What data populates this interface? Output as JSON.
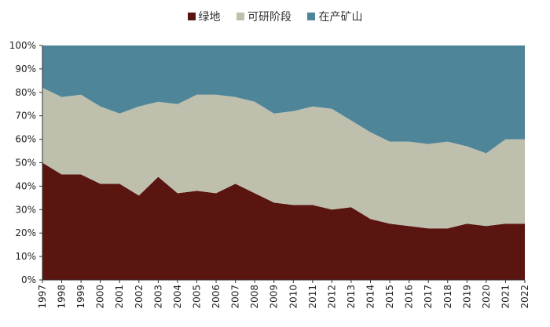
{
  "chart_data": {
    "type": "area",
    "stacked": true,
    "legend_position": "top",
    "grid": false,
    "ylim": [
      0,
      100
    ],
    "y_ticks": [
      "0%",
      "10%",
      "20%",
      "30%",
      "40%",
      "50%",
      "60%",
      "70%",
      "80%",
      "90%",
      "100%"
    ],
    "categories": [
      "1997",
      "1998",
      "1999",
      "2000",
      "2001",
      "2002",
      "2003",
      "2004",
      "2005",
      "2006",
      "2007",
      "2008",
      "2009",
      "2010",
      "2011",
      "2012",
      "2013",
      "2014",
      "2015",
      "2016",
      "2017",
      "2018",
      "2019",
      "2020",
      "2021",
      "2022"
    ],
    "series": [
      {
        "name": "绿地",
        "color": "#5a1511",
        "values": [
          50,
          45,
          45,
          41,
          41,
          36,
          44,
          37,
          38,
          37,
          41,
          37,
          33,
          32,
          32,
          30,
          31,
          26,
          24,
          23,
          22,
          22,
          24,
          23,
          24,
          24
        ]
      },
      {
        "name": "可研阶段",
        "color": "#bfbfad",
        "values": [
          32,
          33,
          34,
          33,
          30,
          38,
          32,
          38,
          41,
          42,
          37,
          39,
          38,
          40,
          42,
          43,
          37,
          37,
          35,
          36,
          36,
          37,
          33,
          31,
          36,
          36
        ]
      },
      {
        "name": "在产矿山",
        "color": "#4f8598",
        "values": [
          18,
          22,
          21,
          26,
          29,
          26,
          24,
          25,
          21,
          21,
          22,
          24,
          29,
          28,
          26,
          27,
          32,
          37,
          41,
          41,
          42,
          41,
          43,
          46,
          40,
          40
        ]
      }
    ]
  }
}
